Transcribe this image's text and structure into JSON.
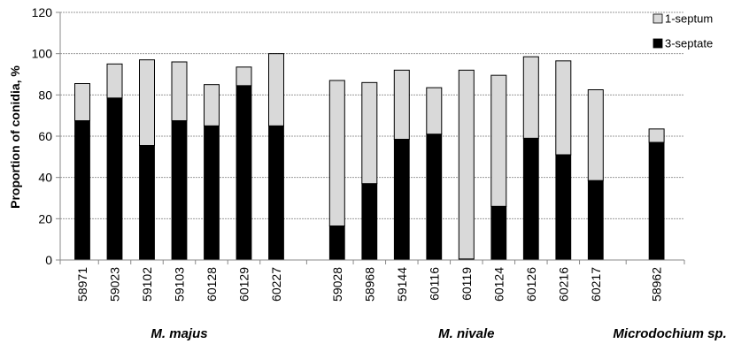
{
  "chart_data": {
    "type": "bar",
    "stacked": true,
    "ylabel": "Proportion of conidia, %",
    "xlabel": "",
    "ylim": [
      0,
      120
    ],
    "yticks": [
      0,
      20,
      40,
      60,
      80,
      100,
      120
    ],
    "grid": true,
    "legend_position": "top-right",
    "colors": {
      "1-septum": "#d9d9d9",
      "3-septate": "#000000",
      "grid": "#999999"
    },
    "groups": [
      {
        "name": "M. majus",
        "categories": [
          "58971",
          "59023",
          "59102",
          "59103",
          "60128",
          "60129",
          "60227"
        ]
      },
      {
        "name": "M. nivale",
        "categories": [
          "59028",
          "58968",
          "59144",
          "60116",
          "60119",
          "60124",
          "60126",
          "60216",
          "60217"
        ]
      },
      {
        "name": "Microdochium sp.",
        "categories": [
          "58962"
        ]
      }
    ],
    "categories": [
      "58971",
      "59023",
      "59102",
      "59103",
      "60128",
      "60129",
      "60227",
      "59028",
      "58968",
      "59144",
      "60116",
      "60119",
      "60124",
      "60126",
      "60216",
      "60217",
      "58962"
    ],
    "series": [
      {
        "name": "3-septate",
        "color": "#000000",
        "values": [
          67.5,
          78.5,
          55.5,
          67.5,
          65,
          84.5,
          65,
          16.5,
          37,
          58.5,
          61,
          0.5,
          26,
          59,
          51,
          38.5,
          57
        ]
      },
      {
        "name": "1-septum",
        "color": "#d9d9d9",
        "values": [
          18,
          16.5,
          41.5,
          28.5,
          20,
          9,
          35,
          70.5,
          49,
          33.5,
          22.5,
          91.5,
          63.5,
          39.5,
          45.5,
          44,
          6.5
        ]
      }
    ]
  }
}
